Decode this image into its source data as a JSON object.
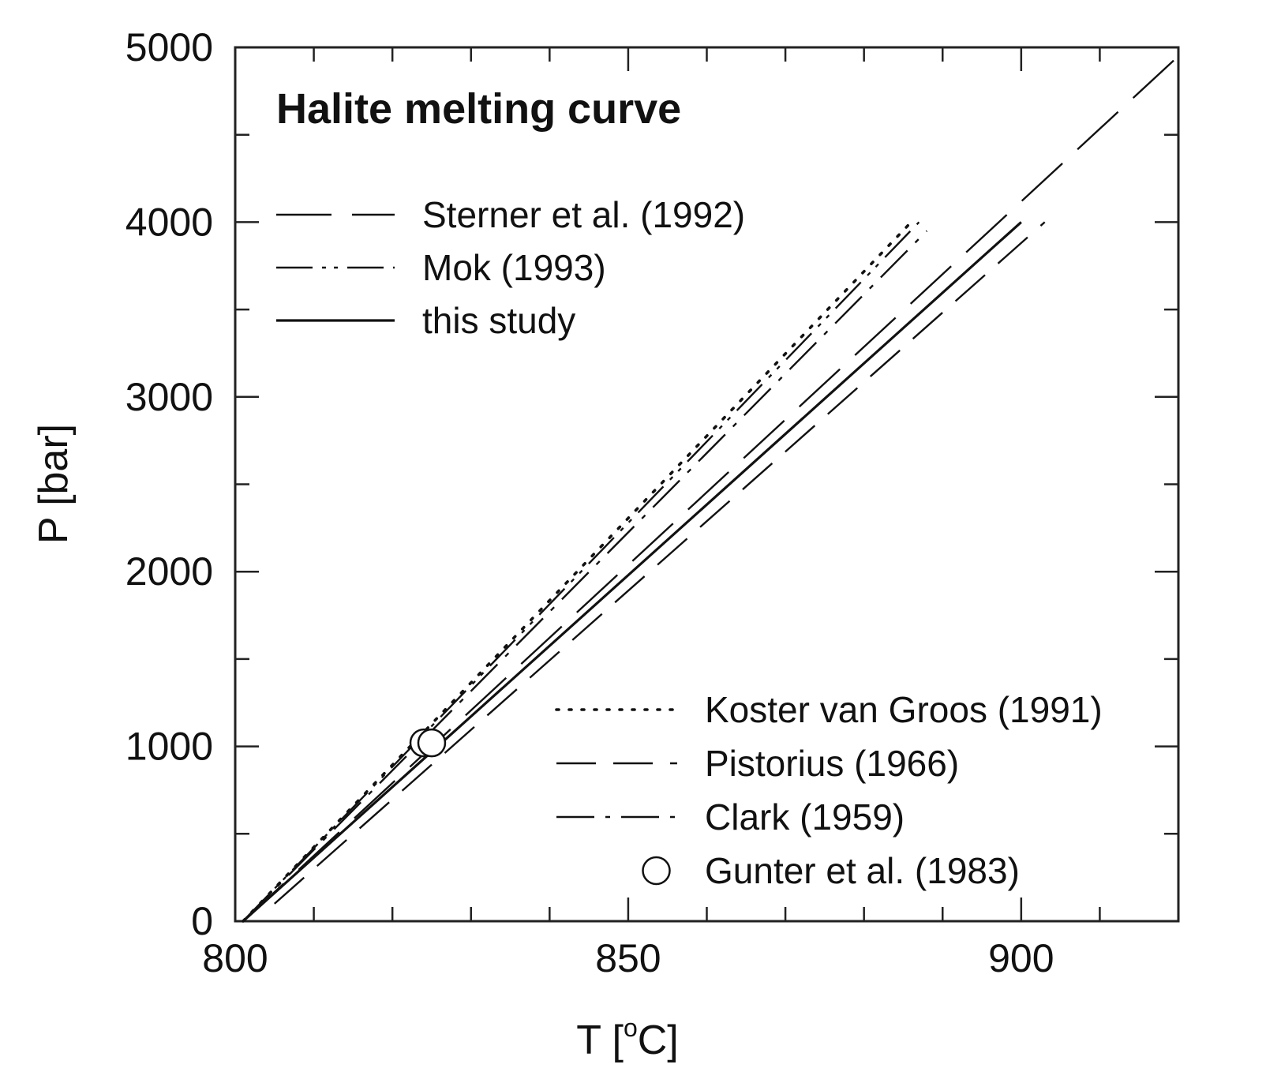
{
  "chart_data": {
    "type": "line",
    "title": "Halite melting curve",
    "xlabel": "T [",
    "xlabel_sup": "o",
    "xlabel_end": "C]",
    "ylabel": "P [bar]",
    "xlim": [
      800,
      920
    ],
    "ylim": [
      0,
      5000
    ],
    "x_ticks": [
      800,
      850,
      900
    ],
    "y_ticks": [
      0,
      1000,
      2000,
      3000,
      4000,
      5000
    ],
    "grid": false,
    "legend_upper": [
      {
        "name": "Sterner et al. (1992)",
        "style": "long-dash"
      },
      {
        "name": "Mok (1993)",
        "style": "dash-dot-dot"
      },
      {
        "name": "this study",
        "style": "solid"
      }
    ],
    "legend_lower": [
      {
        "name": "Koster van Groos (1991)",
        "style": "dotted"
      },
      {
        "name": "Pistorius (1966)",
        "style": "medium-dash"
      },
      {
        "name": "Clark (1959)",
        "style": "dash-dot"
      },
      {
        "name": "Gunter et al. (1983)",
        "style": "open-circle"
      }
    ],
    "series": [
      {
        "name": "Koster van Groos (1991)",
        "style": "dotted",
        "x": [
          801,
          886
        ],
        "y": [
          0,
          4000
        ]
      },
      {
        "name": "Mok (1993)",
        "style": "dash-dot-dot",
        "x": [
          801,
          887
        ],
        "y": [
          0,
          4000
        ]
      },
      {
        "name": "Sterner et al. (1992)",
        "style": "long-dash",
        "x": [
          801,
          920
        ],
        "y": [
          0,
          4950
        ]
      },
      {
        "name": "Clark (1959)",
        "style": "dash-dot",
        "x": [
          801,
          888
        ],
        "y": [
          0,
          3950
        ]
      },
      {
        "name": "this study",
        "style": "solid",
        "x": [
          801,
          900
        ],
        "y": [
          0,
          4000
        ]
      },
      {
        "name": "Pistorius (1966)",
        "style": "medium-dash",
        "x": [
          805,
          903
        ],
        "y": [
          100,
          4000
        ]
      }
    ],
    "points": [
      {
        "name": "Gunter et al. (1983)",
        "x": [
          824,
          825
        ],
        "y": [
          1020,
          1020
        ]
      }
    ]
  }
}
